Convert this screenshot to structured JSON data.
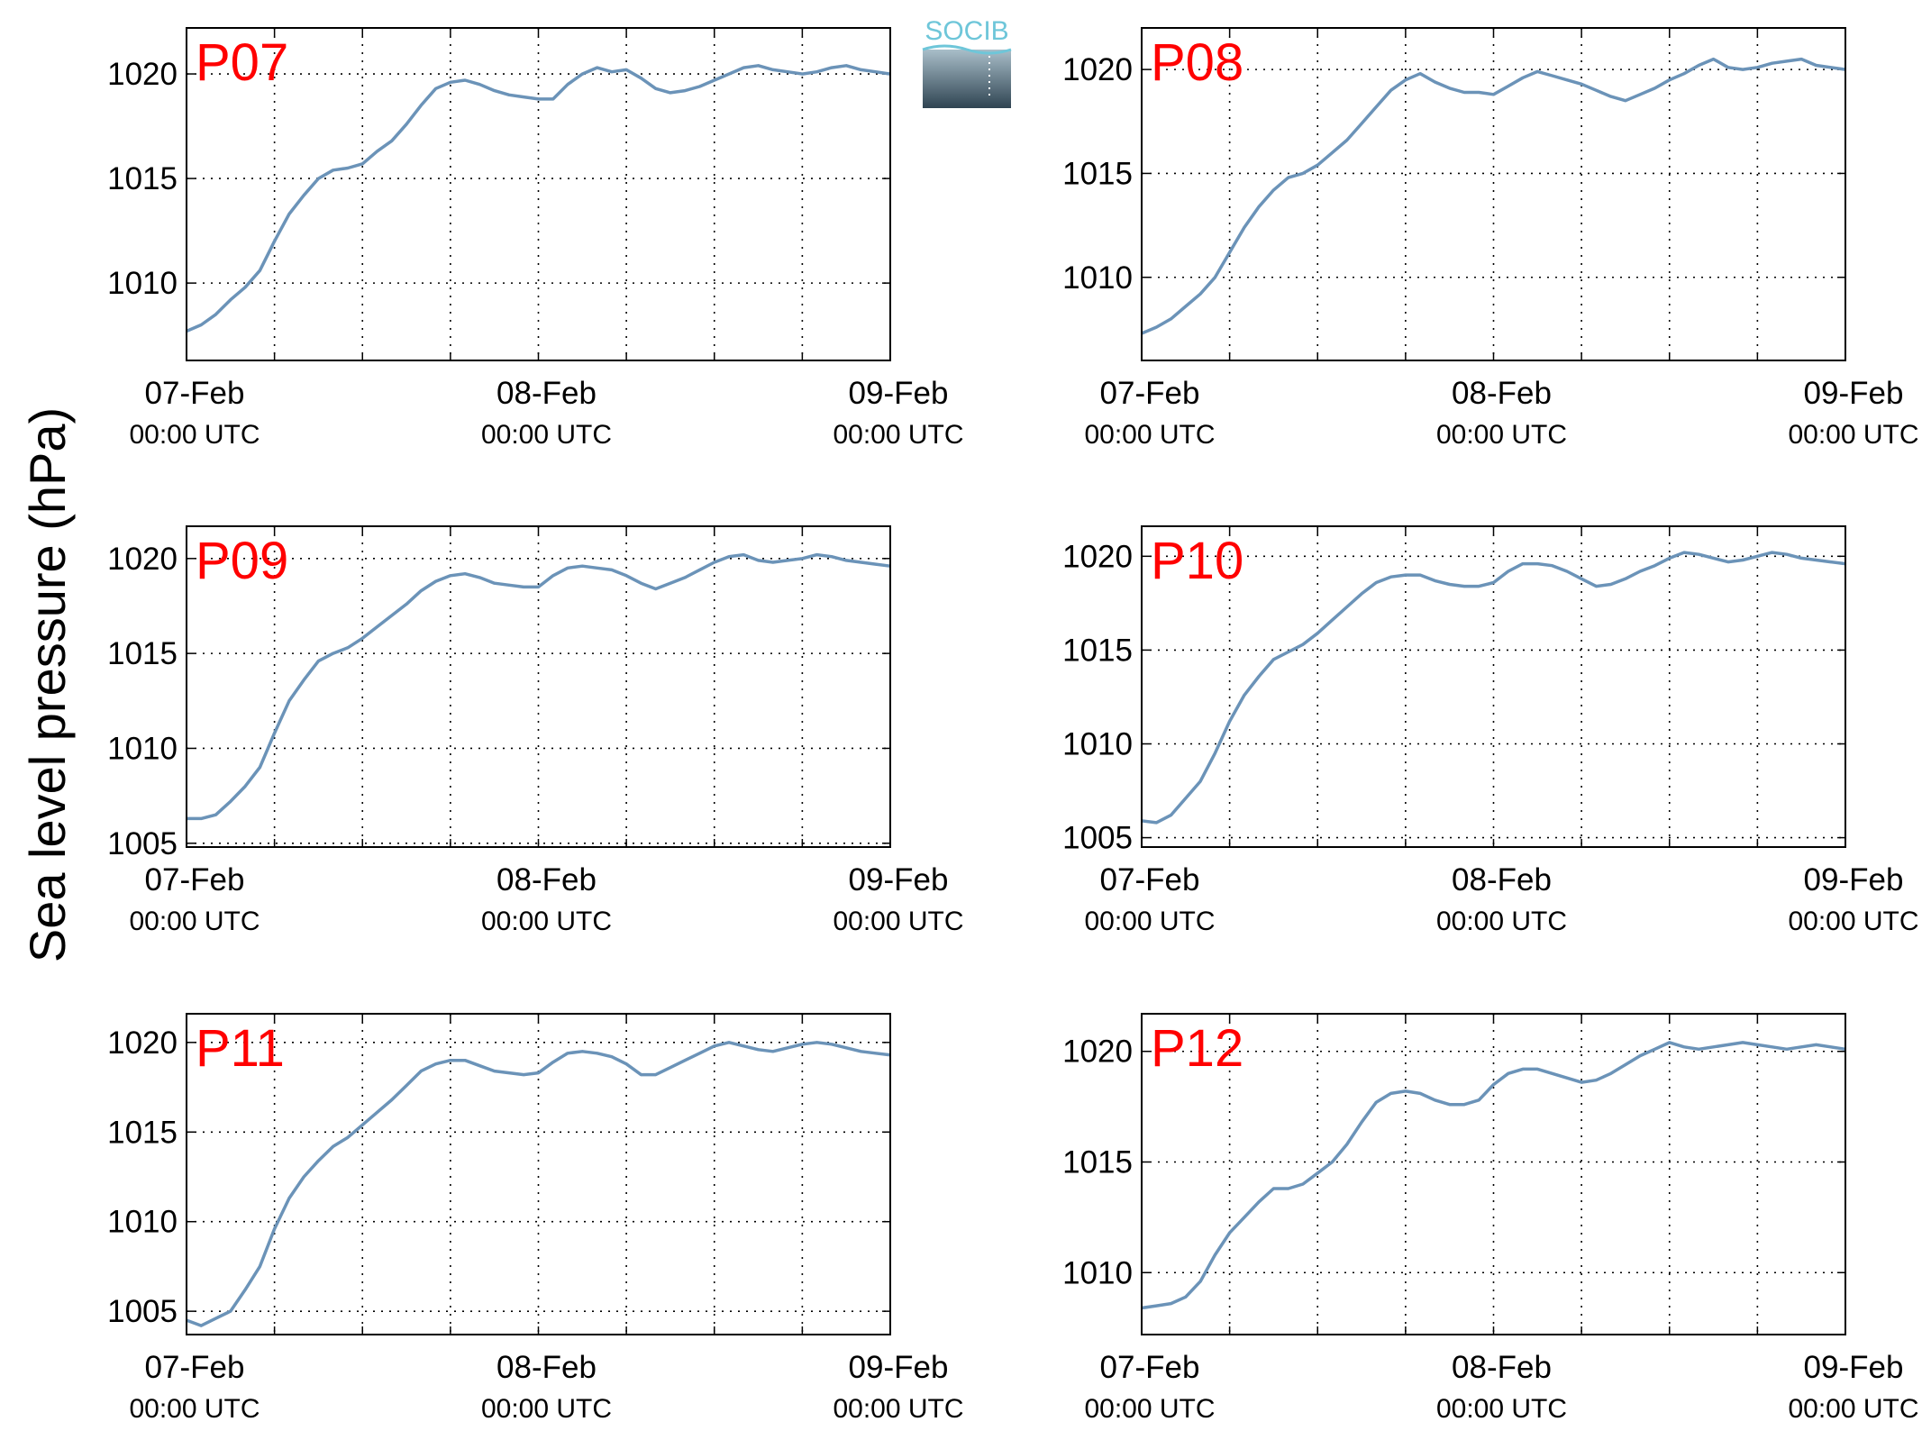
{
  "figure": {
    "ylabel": "Sea level pressure (hPa)",
    "logo_text": "SOCIB",
    "line_color": "#6b93b8",
    "label_color": "#ff0000"
  },
  "chart_data": [
    {
      "type": "line",
      "panel_label": "P07",
      "x_ticks": [
        {
          "date": "07-Feb",
          "time": "00:00 UTC"
        },
        {
          "date": "08-Feb",
          "time": "00:00 UTC"
        },
        {
          "date": "09-Feb",
          "time": "00:00 UTC"
        }
      ],
      "x_unit": "hours since 07-Feb 00:00 UTC",
      "xlim": [
        0,
        48
      ],
      "y_ticks": [
        1010,
        1015,
        1020
      ],
      "ylim": [
        1006.3,
        1022.2
      ],
      "grid": true,
      "x": [
        0,
        1,
        2,
        3,
        4,
        5,
        6,
        7,
        8,
        9,
        10,
        11,
        12,
        13,
        14,
        15,
        16,
        17,
        18,
        19,
        20,
        21,
        22,
        23,
        24,
        25,
        26,
        27,
        28,
        29,
        30,
        31,
        32,
        33,
        34,
        35,
        36,
        37,
        38,
        39,
        40,
        41,
        42,
        43,
        44,
        45,
        46,
        47,
        48
      ],
      "y": [
        1007.7,
        1008.0,
        1008.5,
        1009.2,
        1009.8,
        1010.6,
        1012.0,
        1013.3,
        1014.2,
        1015.0,
        1015.4,
        1015.5,
        1015.7,
        1016.3,
        1016.8,
        1017.6,
        1018.5,
        1019.3,
        1019.6,
        1019.7,
        1019.5,
        1019.2,
        1019.0,
        1018.9,
        1018.8,
        1018.8,
        1019.5,
        1020.0,
        1020.3,
        1020.1,
        1020.2,
        1019.8,
        1019.3,
        1019.1,
        1019.2,
        1019.4,
        1019.7,
        1020.0,
        1020.3,
        1020.4,
        1020.2,
        1020.1,
        1020.0,
        1020.1,
        1020.3,
        1020.4,
        1020.2,
        1020.1,
        1020.0
      ]
    },
    {
      "type": "line",
      "panel_label": "P08",
      "x_ticks": [
        {
          "date": "07-Feb",
          "time": "00:00 UTC"
        },
        {
          "date": "08-Feb",
          "time": "00:00 UTC"
        },
        {
          "date": "09-Feb",
          "time": "00:00 UTC"
        }
      ],
      "x_unit": "hours since 07-Feb 00:00 UTC",
      "xlim": [
        0,
        48
      ],
      "y_ticks": [
        1010,
        1015,
        1020
      ],
      "ylim": [
        1006.0,
        1022.0
      ],
      "grid": true,
      "x": [
        0,
        1,
        2,
        3,
        4,
        5,
        6,
        7,
        8,
        9,
        10,
        11,
        12,
        13,
        14,
        15,
        16,
        17,
        18,
        19,
        20,
        21,
        22,
        23,
        24,
        25,
        26,
        27,
        28,
        29,
        30,
        31,
        32,
        33,
        34,
        35,
        36,
        37,
        38,
        39,
        40,
        41,
        42,
        43,
        44,
        45,
        46,
        47,
        48
      ],
      "y": [
        1007.3,
        1007.6,
        1008.0,
        1008.6,
        1009.2,
        1010.0,
        1011.2,
        1012.4,
        1013.4,
        1014.2,
        1014.8,
        1015.0,
        1015.4,
        1016.0,
        1016.6,
        1017.4,
        1018.2,
        1019.0,
        1019.5,
        1019.8,
        1019.4,
        1019.1,
        1018.9,
        1018.9,
        1018.8,
        1019.2,
        1019.6,
        1019.9,
        1019.7,
        1019.5,
        1019.3,
        1019.0,
        1018.7,
        1018.5,
        1018.8,
        1019.1,
        1019.5,
        1019.8,
        1020.2,
        1020.5,
        1020.1,
        1020.0,
        1020.1,
        1020.3,
        1020.4,
        1020.5,
        1020.2,
        1020.1,
        1020.0
      ]
    },
    {
      "type": "line",
      "panel_label": "P09",
      "x_ticks": [
        {
          "date": "07-Feb",
          "time": "00:00 UTC"
        },
        {
          "date": "08-Feb",
          "time": "00:00 UTC"
        },
        {
          "date": "09-Feb",
          "time": "00:00 UTC"
        }
      ],
      "x_unit": "hours since 07-Feb 00:00 UTC",
      "xlim": [
        0,
        48
      ],
      "y_ticks": [
        1005,
        1010,
        1015,
        1020
      ],
      "ylim": [
        1004.8,
        1021.7
      ],
      "grid": true,
      "x": [
        0,
        1,
        2,
        3,
        4,
        5,
        6,
        7,
        8,
        9,
        10,
        11,
        12,
        13,
        14,
        15,
        16,
        17,
        18,
        19,
        20,
        21,
        22,
        23,
        24,
        25,
        26,
        27,
        28,
        29,
        30,
        31,
        32,
        33,
        34,
        35,
        36,
        37,
        38,
        39,
        40,
        41,
        42,
        43,
        44,
        45,
        46,
        47,
        48
      ],
      "y": [
        1006.3,
        1006.3,
        1006.5,
        1007.2,
        1008.0,
        1009.0,
        1010.8,
        1012.5,
        1013.6,
        1014.6,
        1015.0,
        1015.3,
        1015.8,
        1016.4,
        1017.0,
        1017.6,
        1018.3,
        1018.8,
        1019.1,
        1019.2,
        1019.0,
        1018.7,
        1018.6,
        1018.5,
        1018.5,
        1019.1,
        1019.5,
        1019.6,
        1019.5,
        1019.4,
        1019.1,
        1018.7,
        1018.4,
        1018.7,
        1019.0,
        1019.4,
        1019.8,
        1020.1,
        1020.2,
        1019.9,
        1019.8,
        1019.9,
        1020.0,
        1020.2,
        1020.1,
        1019.9,
        1019.8,
        1019.7,
        1019.6
      ]
    },
    {
      "type": "line",
      "panel_label": "P10",
      "x_ticks": [
        {
          "date": "07-Feb",
          "time": "00:00 UTC"
        },
        {
          "date": "08-Feb",
          "time": "00:00 UTC"
        },
        {
          "date": "09-Feb",
          "time": "00:00 UTC"
        }
      ],
      "x_unit": "hours since 07-Feb 00:00 UTC",
      "xlim": [
        0,
        48
      ],
      "y_ticks": [
        1005,
        1010,
        1015,
        1020
      ],
      "ylim": [
        1004.5,
        1021.6
      ],
      "grid": true,
      "x": [
        0,
        1,
        2,
        3,
        4,
        5,
        6,
        7,
        8,
        9,
        10,
        11,
        12,
        13,
        14,
        15,
        16,
        17,
        18,
        19,
        20,
        21,
        22,
        23,
        24,
        25,
        26,
        27,
        28,
        29,
        30,
        31,
        32,
        33,
        34,
        35,
        36,
        37,
        38,
        39,
        40,
        41,
        42,
        43,
        44,
        45,
        46,
        47,
        48
      ],
      "y": [
        1005.9,
        1005.8,
        1006.2,
        1007.1,
        1008.0,
        1009.5,
        1011.2,
        1012.6,
        1013.6,
        1014.5,
        1014.9,
        1015.3,
        1015.9,
        1016.6,
        1017.3,
        1018.0,
        1018.6,
        1018.9,
        1019.0,
        1019.0,
        1018.7,
        1018.5,
        1018.4,
        1018.4,
        1018.6,
        1019.2,
        1019.6,
        1019.6,
        1019.5,
        1019.2,
        1018.8,
        1018.4,
        1018.5,
        1018.8,
        1019.2,
        1019.5,
        1019.9,
        1020.2,
        1020.1,
        1019.9,
        1019.7,
        1019.8,
        1020.0,
        1020.2,
        1020.1,
        1019.9,
        1019.8,
        1019.7,
        1019.6
      ]
    },
    {
      "type": "line",
      "panel_label": "P11",
      "x_ticks": [
        {
          "date": "07-Feb",
          "time": "00:00 UTC"
        },
        {
          "date": "08-Feb",
          "time": "00:00 UTC"
        },
        {
          "date": "09-Feb",
          "time": "00:00 UTC"
        }
      ],
      "x_unit": "hours since 07-Feb 00:00 UTC",
      "xlim": [
        0,
        48
      ],
      "y_ticks": [
        1005,
        1010,
        1015,
        1020
      ],
      "ylim": [
        1003.7,
        1021.6
      ],
      "grid": true,
      "x": [
        0,
        1,
        2,
        3,
        4,
        5,
        6,
        7,
        8,
        9,
        10,
        11,
        12,
        13,
        14,
        15,
        16,
        17,
        18,
        19,
        20,
        21,
        22,
        23,
        24,
        25,
        26,
        27,
        28,
        29,
        30,
        31,
        32,
        33,
        34,
        35,
        36,
        37,
        38,
        39,
        40,
        41,
        42,
        43,
        44,
        45,
        46,
        47,
        48
      ],
      "y": [
        1004.5,
        1004.2,
        1004.6,
        1005.0,
        1006.2,
        1007.5,
        1009.6,
        1011.3,
        1012.5,
        1013.4,
        1014.2,
        1014.7,
        1015.4,
        1016.1,
        1016.8,
        1017.6,
        1018.4,
        1018.8,
        1019.0,
        1019.0,
        1018.7,
        1018.4,
        1018.3,
        1018.2,
        1018.3,
        1018.9,
        1019.4,
        1019.5,
        1019.4,
        1019.2,
        1018.8,
        1018.2,
        1018.2,
        1018.6,
        1019.0,
        1019.4,
        1019.8,
        1020.0,
        1019.8,
        1019.6,
        1019.5,
        1019.7,
        1019.9,
        1020.0,
        1019.9,
        1019.7,
        1019.5,
        1019.4,
        1019.3
      ]
    },
    {
      "type": "line",
      "panel_label": "P12",
      "x_ticks": [
        {
          "date": "07-Feb",
          "time": "00:00 UTC"
        },
        {
          "date": "08-Feb",
          "time": "00:00 UTC"
        },
        {
          "date": "09-Feb",
          "time": "00:00 UTC"
        }
      ],
      "x_unit": "hours since 07-Feb 00:00 UTC",
      "xlim": [
        0,
        48
      ],
      "y_ticks": [
        1010,
        1015,
        1020
      ],
      "ylim": [
        1007.2,
        1021.7
      ],
      "grid": true,
      "x": [
        0,
        1,
        2,
        3,
        4,
        5,
        6,
        7,
        8,
        9,
        10,
        11,
        12,
        13,
        14,
        15,
        16,
        17,
        18,
        19,
        20,
        21,
        22,
        23,
        24,
        25,
        26,
        27,
        28,
        29,
        30,
        31,
        32,
        33,
        34,
        35,
        36,
        37,
        38,
        39,
        40,
        41,
        42,
        43,
        44,
        45,
        46,
        47,
        48
      ],
      "y": [
        1008.4,
        1008.5,
        1008.6,
        1008.9,
        1009.6,
        1010.8,
        1011.8,
        1012.5,
        1013.2,
        1013.8,
        1013.8,
        1014.0,
        1014.5,
        1015.0,
        1015.8,
        1016.8,
        1017.7,
        1018.1,
        1018.2,
        1018.1,
        1017.8,
        1017.6,
        1017.6,
        1017.8,
        1018.5,
        1019.0,
        1019.2,
        1019.2,
        1019.0,
        1018.8,
        1018.6,
        1018.7,
        1019.0,
        1019.4,
        1019.8,
        1020.1,
        1020.4,
        1020.2,
        1020.1,
        1020.2,
        1020.3,
        1020.4,
        1020.3,
        1020.2,
        1020.1,
        1020.2,
        1020.3,
        1020.2,
        1020.1
      ]
    }
  ]
}
